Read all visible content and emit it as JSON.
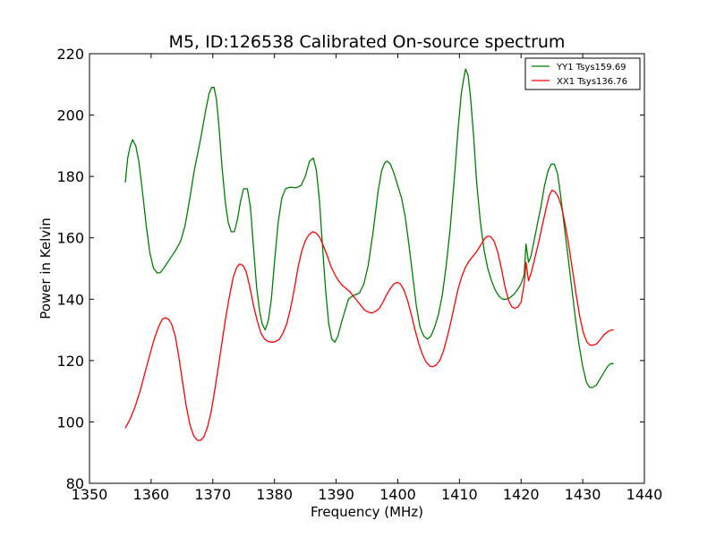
{
  "chart_data": {
    "type": "line",
    "title": "M5, ID:126538 Calibrated On-source spectrum",
    "xlabel": "Frequency (MHz)",
    "ylabel": "Power in Kelvin",
    "xlim": [
      1350,
      1440
    ],
    "ylim": [
      80,
      220
    ],
    "xticks": [
      1350,
      1360,
      1370,
      1380,
      1390,
      1400,
      1410,
      1420,
      1430,
      1440
    ],
    "yticks": [
      80,
      100,
      120,
      140,
      160,
      180,
      200,
      220
    ],
    "grid": false,
    "legend_position": "top-right",
    "series": [
      {
        "name": "YY1 Tsys159.69",
        "color": "#008000",
        "points": [
          [
            1355.8,
            178
          ],
          [
            1356.2,
            186
          ],
          [
            1356.6,
            190
          ],
          [
            1357.0,
            192
          ],
          [
            1357.5,
            190
          ],
          [
            1358.0,
            185
          ],
          [
            1358.6,
            175
          ],
          [
            1359.2,
            164
          ],
          [
            1359.8,
            155
          ],
          [
            1360.4,
            150
          ],
          [
            1361.0,
            148.5
          ],
          [
            1361.5,
            148.7
          ],
          [
            1362.0,
            150
          ],
          [
            1363.0,
            153
          ],
          [
            1364.0,
            156
          ],
          [
            1364.8,
            159
          ],
          [
            1365.5,
            164
          ],
          [
            1366.2,
            172
          ],
          [
            1367.0,
            182
          ],
          [
            1368.0,
            192
          ],
          [
            1368.8,
            201
          ],
          [
            1369.4,
            207
          ],
          [
            1369.8,
            209
          ],
          [
            1370.2,
            209
          ],
          [
            1370.6,
            205
          ],
          [
            1371.0,
            196
          ],
          [
            1371.5,
            183
          ],
          [
            1372.0,
            172
          ],
          [
            1372.5,
            165
          ],
          [
            1373.0,
            162
          ],
          [
            1373.5,
            162
          ],
          [
            1374.0,
            166
          ],
          [
            1374.5,
            172
          ],
          [
            1375.0,
            176
          ],
          [
            1375.6,
            176
          ],
          [
            1376.1,
            170
          ],
          [
            1376.6,
            157
          ],
          [
            1377.1,
            144
          ],
          [
            1377.6,
            136
          ],
          [
            1378.0,
            132
          ],
          [
            1378.5,
            130
          ],
          [
            1379.0,
            133
          ],
          [
            1379.5,
            140
          ],
          [
            1380.0,
            152
          ],
          [
            1380.6,
            165
          ],
          [
            1381.2,
            173
          ],
          [
            1381.8,
            176
          ],
          [
            1382.5,
            176.5
          ],
          [
            1383.5,
            176.3
          ],
          [
            1384.3,
            177
          ],
          [
            1385.0,
            180
          ],
          [
            1385.7,
            185
          ],
          [
            1386.3,
            186
          ],
          [
            1386.8,
            182
          ],
          [
            1387.3,
            172
          ],
          [
            1387.8,
            157
          ],
          [
            1388.3,
            143
          ],
          [
            1388.8,
            132
          ],
          [
            1389.3,
            127
          ],
          [
            1389.8,
            126
          ],
          [
            1390.3,
            128
          ],
          [
            1390.8,
            132
          ],
          [
            1391.4,
            136
          ],
          [
            1392.0,
            140
          ],
          [
            1392.6,
            141
          ],
          [
            1393.2,
            141.5
          ],
          [
            1393.8,
            142
          ],
          [
            1394.5,
            145
          ],
          [
            1395.2,
            151
          ],
          [
            1396.0,
            162
          ],
          [
            1396.8,
            175
          ],
          [
            1397.4,
            182
          ],
          [
            1397.9,
            184.5
          ],
          [
            1398.3,
            185
          ],
          [
            1398.8,
            184
          ],
          [
            1399.4,
            181
          ],
          [
            1400.0,
            177
          ],
          [
            1400.6,
            173
          ],
          [
            1401.2,
            167
          ],
          [
            1401.8,
            158
          ],
          [
            1402.4,
            148
          ],
          [
            1403.0,
            138
          ],
          [
            1403.6,
            131
          ],
          [
            1404.2,
            128
          ],
          [
            1404.8,
            127
          ],
          [
            1405.4,
            128
          ],
          [
            1406.0,
            131
          ],
          [
            1406.6,
            135
          ],
          [
            1407.2,
            141
          ],
          [
            1407.8,
            150
          ],
          [
            1408.5,
            163
          ],
          [
            1409.2,
            180
          ],
          [
            1409.8,
            196
          ],
          [
            1410.3,
            207
          ],
          [
            1410.7,
            212
          ],
          [
            1411.0,
            215
          ],
          [
            1411.4,
            213
          ],
          [
            1411.8,
            206
          ],
          [
            1412.3,
            193
          ],
          [
            1412.8,
            178
          ],
          [
            1413.4,
            165
          ],
          [
            1414.0,
            156
          ],
          [
            1414.6,
            150
          ],
          [
            1415.2,
            146
          ],
          [
            1415.8,
            143
          ],
          [
            1416.4,
            141
          ],
          [
            1417.0,
            140
          ],
          [
            1417.6,
            140
          ],
          [
            1418.2,
            140.5
          ],
          [
            1418.8,
            141.5
          ],
          [
            1419.4,
            143
          ],
          [
            1420.0,
            145
          ],
          [
            1420.5,
            148
          ],
          [
            1420.8,
            158
          ],
          [
            1421.2,
            152
          ],
          [
            1421.6,
            154
          ],
          [
            1422.0,
            158
          ],
          [
            1422.6,
            164
          ],
          [
            1423.2,
            170
          ],
          [
            1423.8,
            177
          ],
          [
            1424.4,
            182
          ],
          [
            1424.9,
            184
          ],
          [
            1425.4,
            184
          ],
          [
            1425.9,
            181
          ],
          [
            1426.4,
            174
          ],
          [
            1427.0,
            164
          ],
          [
            1427.6,
            154
          ],
          [
            1428.2,
            144
          ],
          [
            1428.8,
            134
          ],
          [
            1429.4,
            125
          ],
          [
            1430.0,
            118
          ],
          [
            1430.6,
            113
          ],
          [
            1431.1,
            111.3
          ],
          [
            1431.6,
            111.2
          ],
          [
            1432.2,
            112
          ],
          [
            1432.8,
            114
          ],
          [
            1433.4,
            116
          ],
          [
            1434.0,
            118
          ],
          [
            1434.5,
            119
          ],
          [
            1435.0,
            119
          ]
        ]
      },
      {
        "name": "XX1 Tsys136.76",
        "color": "#ff0000",
        "points": [
          [
            1355.8,
            98
          ],
          [
            1356.6,
            101
          ],
          [
            1357.4,
            105
          ],
          [
            1358.2,
            110
          ],
          [
            1359.0,
            116
          ],
          [
            1359.8,
            122
          ],
          [
            1360.5,
            127
          ],
          [
            1361.2,
            131
          ],
          [
            1361.8,
            133.5
          ],
          [
            1362.3,
            134
          ],
          [
            1362.8,
            133.5
          ],
          [
            1363.3,
            132
          ],
          [
            1363.9,
            128
          ],
          [
            1364.5,
            121
          ],
          [
            1365.1,
            113
          ],
          [
            1365.7,
            105
          ],
          [
            1366.3,
            99
          ],
          [
            1366.9,
            95.5
          ],
          [
            1367.5,
            94
          ],
          [
            1368.0,
            94
          ],
          [
            1368.5,
            95
          ],
          [
            1369.1,
            98
          ],
          [
            1369.7,
            103
          ],
          [
            1370.3,
            110
          ],
          [
            1370.9,
            118
          ],
          [
            1371.5,
            126
          ],
          [
            1372.1,
            134
          ],
          [
            1372.7,
            141
          ],
          [
            1373.3,
            147
          ],
          [
            1373.9,
            150.5
          ],
          [
            1374.4,
            151.5
          ],
          [
            1374.9,
            151
          ],
          [
            1375.4,
            149
          ],
          [
            1376.0,
            144
          ],
          [
            1376.6,
            138
          ],
          [
            1377.2,
            133
          ],
          [
            1377.8,
            129
          ],
          [
            1378.4,
            127
          ],
          [
            1379.0,
            126.2
          ],
          [
            1379.6,
            126
          ],
          [
            1380.2,
            126.2
          ],
          [
            1380.8,
            127
          ],
          [
            1381.4,
            129
          ],
          [
            1382.0,
            132
          ],
          [
            1382.6,
            137
          ],
          [
            1383.2,
            143
          ],
          [
            1383.8,
            150
          ],
          [
            1384.4,
            155.5
          ],
          [
            1385.0,
            159
          ],
          [
            1385.6,
            161
          ],
          [
            1386.2,
            162
          ],
          [
            1386.8,
            161.5
          ],
          [
            1387.4,
            160
          ],
          [
            1388.0,
            157
          ],
          [
            1388.6,
            154
          ],
          [
            1389.2,
            150.5
          ],
          [
            1389.8,
            148
          ],
          [
            1390.4,
            146
          ],
          [
            1391.0,
            144.5
          ],
          [
            1391.6,
            143.5
          ],
          [
            1392.2,
            142.5
          ],
          [
            1392.8,
            141
          ],
          [
            1393.4,
            139.5
          ],
          [
            1394.0,
            138
          ],
          [
            1394.6,
            136.5
          ],
          [
            1395.2,
            135.8
          ],
          [
            1395.8,
            135.5
          ],
          [
            1396.4,
            136
          ],
          [
            1397.0,
            137
          ],
          [
            1397.6,
            139
          ],
          [
            1398.2,
            141.5
          ],
          [
            1398.8,
            143.5
          ],
          [
            1399.4,
            145
          ],
          [
            1399.9,
            145.5
          ],
          [
            1400.4,
            145
          ],
          [
            1401.0,
            143
          ],
          [
            1401.6,
            139.5
          ],
          [
            1402.2,
            135
          ],
          [
            1402.8,
            130
          ],
          [
            1403.4,
            125.5
          ],
          [
            1404.0,
            122
          ],
          [
            1404.6,
            119.5
          ],
          [
            1405.2,
            118.2
          ],
          [
            1405.7,
            118
          ],
          [
            1406.2,
            118.5
          ],
          [
            1406.8,
            120
          ],
          [
            1407.4,
            123
          ],
          [
            1408.0,
            127.5
          ],
          [
            1408.6,
            132.5
          ],
          [
            1409.2,
            138
          ],
          [
            1409.8,
            143.5
          ],
          [
            1410.4,
            147.5
          ],
          [
            1411.0,
            150.5
          ],
          [
            1411.6,
            152.5
          ],
          [
            1412.2,
            154
          ],
          [
            1412.8,
            155.5
          ],
          [
            1413.4,
            157.5
          ],
          [
            1414.0,
            159.5
          ],
          [
            1414.5,
            160.5
          ],
          [
            1415.0,
            160.5
          ],
          [
            1415.6,
            159
          ],
          [
            1416.2,
            155.5
          ],
          [
            1416.8,
            150
          ],
          [
            1417.4,
            144
          ],
          [
            1418.0,
            139.5
          ],
          [
            1418.5,
            137.5
          ],
          [
            1419.0,
            137
          ],
          [
            1419.5,
            137.5
          ],
          [
            1420.0,
            139
          ],
          [
            1420.5,
            145
          ],
          [
            1420.8,
            152
          ],
          [
            1421.2,
            146
          ],
          [
            1421.7,
            149
          ],
          [
            1422.3,
            154
          ],
          [
            1422.9,
            159
          ],
          [
            1423.5,
            164.5
          ],
          [
            1424.1,
            170
          ],
          [
            1424.6,
            174
          ],
          [
            1425.0,
            175.5
          ],
          [
            1425.5,
            175
          ],
          [
            1426.0,
            173.5
          ],
          [
            1426.5,
            170.5
          ],
          [
            1427.1,
            165
          ],
          [
            1427.7,
            158
          ],
          [
            1428.3,
            150
          ],
          [
            1428.9,
            142
          ],
          [
            1429.5,
            134.5
          ],
          [
            1430.1,
            129
          ],
          [
            1430.7,
            126
          ],
          [
            1431.2,
            125
          ],
          [
            1431.7,
            125
          ],
          [
            1432.3,
            125.5
          ],
          [
            1432.9,
            127
          ],
          [
            1433.5,
            128.5
          ],
          [
            1434.1,
            129.5
          ],
          [
            1434.7,
            130
          ],
          [
            1435.0,
            130
          ]
        ]
      }
    ]
  }
}
